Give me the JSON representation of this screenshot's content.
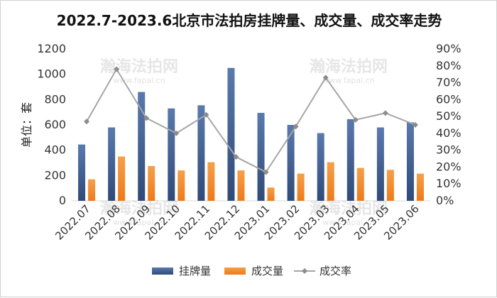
{
  "chart_data": {
    "type": "bar",
    "title": "2022.7-2023.6北京市法拍房挂牌量、成交量、成交率走势",
    "ylabel": "单位：套",
    "categories": [
      "2022.07",
      "2022.08",
      "2022.09",
      "2022.10",
      "2022.11",
      "2022.12",
      "2023.01",
      "2023.02",
      "2023.03",
      "2023.04",
      "2023.05",
      "2023.06"
    ],
    "series": [
      {
        "name": "挂牌量",
        "type": "bar",
        "axis": "left",
        "color": "#3f5f93",
        "values": [
          445,
          580,
          860,
          730,
          755,
          1050,
          695,
          600,
          535,
          645,
          580,
          620
        ]
      },
      {
        "name": "成交量",
        "type": "bar",
        "axis": "left",
        "color": "#f08a2c",
        "values": [
          170,
          350,
          275,
          240,
          305,
          240,
          105,
          215,
          305,
          260,
          245,
          215
        ]
      },
      {
        "name": "成交率",
        "type": "line",
        "axis": "right",
        "color": "#a6a6a6",
        "values": [
          0.47,
          0.78,
          0.49,
          0.4,
          0.51,
          0.26,
          0.17,
          0.44,
          0.73,
          0.48,
          0.52,
          0.45
        ]
      }
    ],
    "y_left": {
      "min": 0,
      "max": 1200,
      "ticks": [
        0,
        200,
        400,
        600,
        800,
        1000,
        1200
      ]
    },
    "y_right": {
      "min": 0,
      "max": 0.9,
      "ticks": [
        "0%",
        "10%",
        "20%",
        "30%",
        "40%",
        "50%",
        "60%",
        "70%",
        "80%",
        "90%"
      ]
    },
    "legend_position": "bottom",
    "grid": false
  },
  "watermark": {
    "text": "瀚海法拍网",
    "url": "www.fapai.cn"
  }
}
